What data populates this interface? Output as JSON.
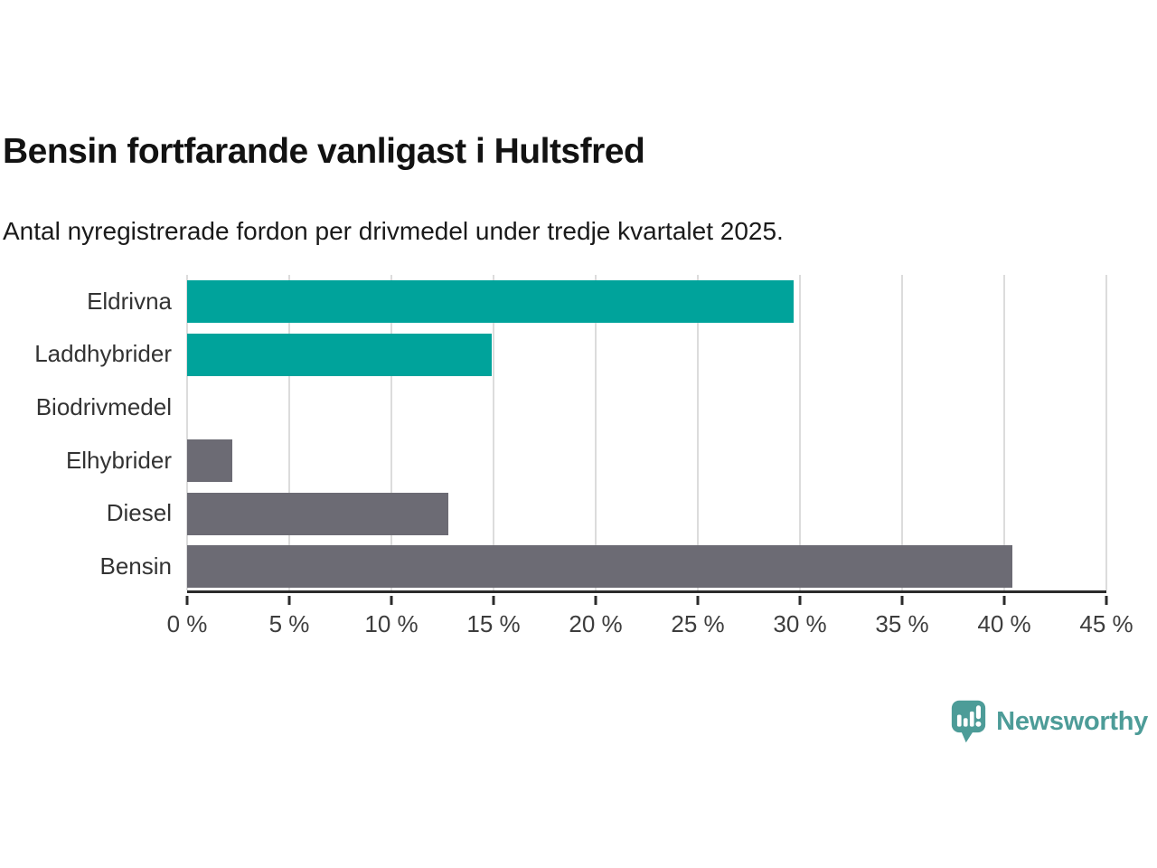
{
  "header": {
    "title": "Bensin fortfarande vanligast i Hultsfred",
    "subtitle": "Antal nyregistrerade fordon per drivmedel under tredje kvartalet 2025."
  },
  "chart_data": {
    "type": "bar",
    "orientation": "horizontal",
    "title": "Bensin fortfarande vanligast i Hultsfred",
    "subtitle": "Antal nyregistrerade fordon per drivmedel under tredje kvartalet 2025.",
    "categories": [
      "Eldrivna",
      "Laddhybrider",
      "Biodrivmedel",
      "Elhybrider",
      "Diesel",
      "Bensin"
    ],
    "values": [
      29.7,
      14.9,
      0,
      2.2,
      12.8,
      40.4
    ],
    "unit": "%",
    "xlim": [
      0,
      45
    ],
    "x_tick_values": [
      0,
      5,
      10,
      15,
      20,
      25,
      30,
      35,
      40,
      45
    ],
    "x_tick_labels": [
      "0 %",
      "5 %",
      "10 %",
      "15 %",
      "20 %",
      "25 %",
      "30 %",
      "35 %",
      "40 %",
      "45 %"
    ],
    "bar_colors": [
      "#00a39b",
      "#00a39b",
      "#6c6b74",
      "#6c6b74",
      "#6c6b74",
      "#6c6b74"
    ],
    "grid": true,
    "legend_position": "none",
    "colors": {
      "teal": "#00a39b",
      "gray": "#6c6b74",
      "gridline": "#dcdcdc",
      "axis": "#2b2b2b",
      "label": "#333333"
    }
  },
  "footer": {
    "brand": "Newsworthy",
    "brand_color": "#4d9c98",
    "logo_icon": "newsworthy-speech-bubble-chart-icon"
  }
}
